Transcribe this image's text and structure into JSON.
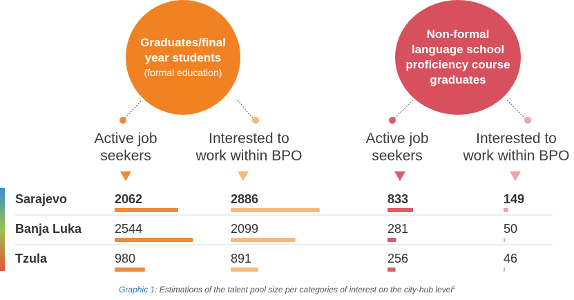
{
  "circles": [
    {
      "title": "Graduates/final\nyear students",
      "subtitle": "(formal education)",
      "color": "#f08223"
    },
    {
      "title": "Non-formal\nlanguage school\nproficiency course\ngraduates",
      "subtitle": "",
      "color": "#d7505e"
    }
  ],
  "columns": [
    {
      "label": "Active job\nseekers",
      "group": 0
    },
    {
      "label": "Interested to\nwork within BPO",
      "group": 0
    },
    {
      "label": "Active job\nseekers",
      "group": 1
    },
    {
      "label": "Interested to\nwork within BPO",
      "group": 1
    }
  ],
  "caption": {
    "lead": "Graphic 1:",
    "text": " Estimations of the talent pool size per categories of interest on the city-hub level",
    "footnote": "1"
  },
  "colors": {
    "col1": "#f08a3a",
    "col2": "#f6b97c",
    "col3": "#dc5c6a",
    "col4": "#efa3ab",
    "divider": "#d8d8d8"
  },
  "chart_data": {
    "type": "bar",
    "categories": [
      "Sarajevo",
      "Banja Luka",
      "Tzula"
    ],
    "series": [
      {
        "name": "Active job seekers",
        "values": [
          2062,
          2544,
          980
        ]
      },
      {
        "name": "Interested to work within BPO",
        "values": [
          2886,
          2099,
          891
        ]
      },
      {
        "name": "Active job seekers",
        "values": [
          833,
          281,
          256
        ]
      },
      {
        "name": "Interested to work within BPO",
        "values": [
          149,
          50,
          46
        ]
      }
    ]
  }
}
